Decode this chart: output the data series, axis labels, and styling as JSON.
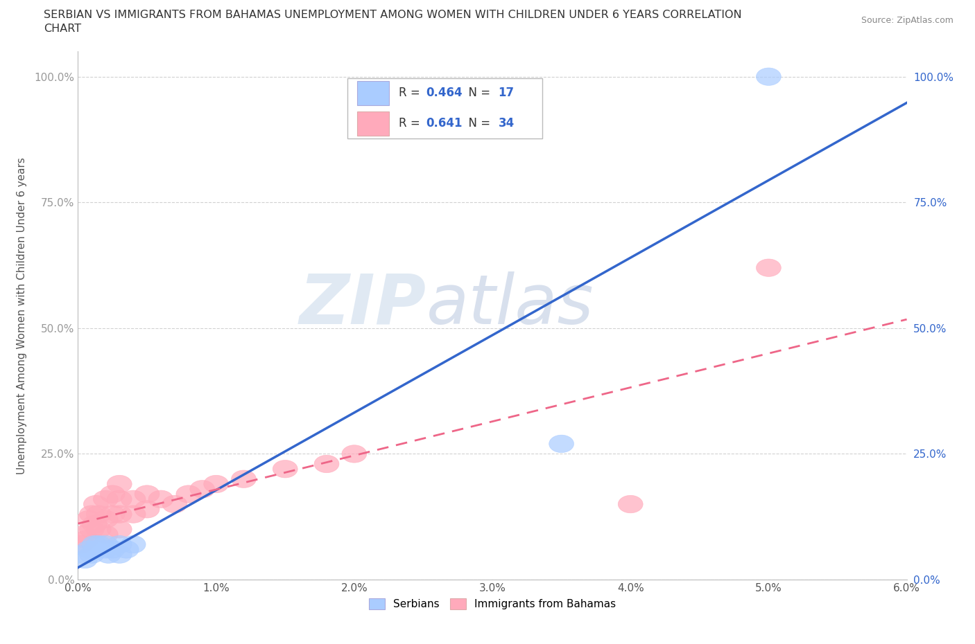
{
  "title_line1": "SERBIAN VS IMMIGRANTS FROM BAHAMAS UNEMPLOYMENT AMONG WOMEN WITH CHILDREN UNDER 6 YEARS CORRELATION",
  "title_line2": "CHART",
  "source": "Source: ZipAtlas.com",
  "ylabel": "Unemployment Among Women with Children Under 6 years",
  "xlim": [
    0.0,
    0.06
  ],
  "ylim": [
    0.0,
    1.05
  ],
  "xticks": [
    0.0,
    0.01,
    0.02,
    0.03,
    0.04,
    0.05,
    0.06
  ],
  "xticklabels": [
    "0.0%",
    "1.0%",
    "2.0%",
    "3.0%",
    "4.0%",
    "5.0%",
    "6.0%"
  ],
  "yticks": [
    0.0,
    0.25,
    0.5,
    0.75,
    1.0
  ],
  "yticklabels": [
    "0.0%",
    "25.0%",
    "50.0%",
    "75.0%",
    "100.0%"
  ],
  "grid_color": "#cccccc",
  "background_color": "#ffffff",
  "watermark": "ZIPatlas",
  "watermark_color": "#c8d8e8",
  "serbian_color": "#aaccff",
  "bahamas_color": "#ffaabb",
  "serbian_line_color": "#3366cc",
  "bahamas_line_color": "#ee6688",
  "right_axis_color": "#3366cc",
  "R_serbian": 0.464,
  "N_serbian": 17,
  "R_bahamas": 0.641,
  "N_bahamas": 34,
  "serbian_x": [
    0.0003,
    0.0005,
    0.0008,
    0.001,
    0.0012,
    0.0013,
    0.0015,
    0.002,
    0.002,
    0.0022,
    0.0025,
    0.003,
    0.003,
    0.0035,
    0.004,
    0.035,
    0.05
  ],
  "serbian_y": [
    0.05,
    0.04,
    0.06,
    0.05,
    0.07,
    0.06,
    0.07,
    0.07,
    0.06,
    0.05,
    0.06,
    0.07,
    0.05,
    0.06,
    0.07,
    0.27,
    1.0
  ],
  "bahamas_x": [
    0.0002,
    0.0004,
    0.0006,
    0.0008,
    0.001,
    0.001,
    0.0012,
    0.0013,
    0.0015,
    0.0015,
    0.002,
    0.002,
    0.002,
    0.0025,
    0.0025,
    0.003,
    0.003,
    0.003,
    0.003,
    0.004,
    0.004,
    0.005,
    0.005,
    0.006,
    0.007,
    0.008,
    0.009,
    0.01,
    0.012,
    0.015,
    0.018,
    0.02,
    0.04,
    0.05
  ],
  "bahamas_y": [
    0.07,
    0.09,
    0.08,
    0.12,
    0.1,
    0.13,
    0.11,
    0.15,
    0.1,
    0.13,
    0.09,
    0.12,
    0.16,
    0.13,
    0.17,
    0.1,
    0.13,
    0.16,
    0.19,
    0.13,
    0.16,
    0.14,
    0.17,
    0.16,
    0.15,
    0.17,
    0.18,
    0.19,
    0.2,
    0.22,
    0.23,
    0.25,
    0.15,
    0.62
  ],
  "legend_label_serbian": "Serbians",
  "legend_label_bahamas": "Immigrants from Bahamas"
}
